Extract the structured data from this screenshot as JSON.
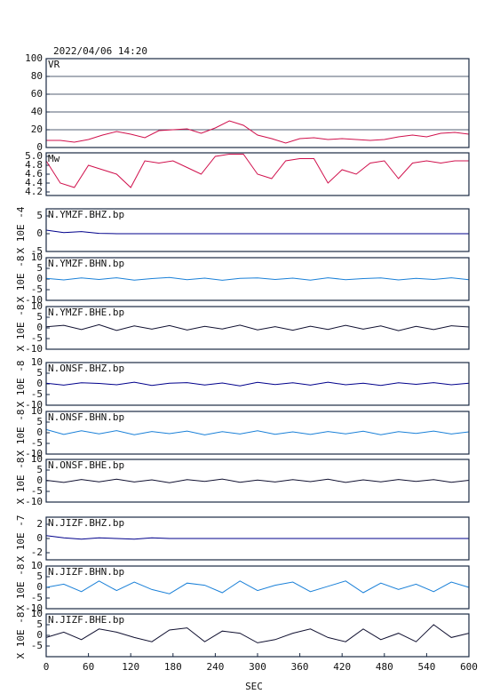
{
  "chart_data": [
    {
      "type": "line",
      "title": "2022/04/06 14:20",
      "label": "VR",
      "color": "#d0104c",
      "grid": true,
      "xlim": [
        0,
        600
      ],
      "ylim": [
        0,
        100
      ],
      "yticks": [
        0,
        20,
        40,
        60,
        80,
        100
      ],
      "x": [
        0,
        20,
        40,
        60,
        80,
        100,
        120,
        140,
        160,
        180,
        200,
        220,
        240,
        260,
        280,
        300,
        320,
        340,
        360,
        380,
        400,
        420,
        440,
        460,
        480,
        500,
        520,
        540,
        560,
        580,
        600
      ],
      "values": [
        8,
        8,
        6,
        9,
        14,
        18,
        15,
        11,
        19,
        20,
        21,
        16,
        22,
        30,
        25,
        14,
        10,
        5,
        10,
        11,
        9,
        10,
        9,
        8,
        9,
        12,
        14,
        12,
        16,
        17,
        15
      ]
    },
    {
      "type": "line",
      "label": "Mw",
      "color": "#d0104c",
      "grid": false,
      "xlim": [
        0,
        600
      ],
      "ylim": [
        4.12,
        5.08
      ],
      "yticks": [
        4.2,
        4.4,
        4.6,
        4.8,
        {
          "value": 5,
          "label": "5.0"
        }
      ],
      "x": [
        0,
        20,
        40,
        60,
        80,
        100,
        120,
        140,
        160,
        180,
        200,
        220,
        240,
        260,
        280,
        300,
        320,
        340,
        360,
        380,
        400,
        420,
        440,
        460,
        480,
        500,
        520,
        540,
        560,
        580,
        600
      ],
      "values": [
        4.9,
        4.4,
        4.3,
        4.8,
        4.7,
        4.6,
        4.3,
        4.9,
        4.85,
        4.9,
        4.75,
        4.6,
        5.0,
        5.05,
        5.05,
        4.6,
        4.5,
        4.9,
        4.95,
        4.95,
        4.4,
        4.7,
        4.6,
        4.85,
        4.9,
        4.5,
        4.85,
        4.9,
        4.85,
        4.9,
        4.9
      ]
    },
    {
      "type": "line",
      "label": "N.YMZF.BHZ.bp",
      "ylabel": "X 10E -4",
      "color": "#00008b",
      "xlim": [
        0,
        600
      ],
      "ylim": [
        -5,
        7
      ],
      "yticks": [
        -5,
        0,
        5
      ],
      "x": [
        0,
        25,
        50,
        75,
        100,
        125,
        150,
        175,
        200,
        225,
        250,
        275,
        300,
        325,
        350,
        375,
        400,
        425,
        450,
        475,
        500,
        525,
        550,
        575,
        600
      ],
      "values": [
        1,
        0.3,
        0.6,
        0.1,
        0,
        0,
        0,
        0,
        0,
        0,
        0,
        0,
        0,
        0,
        0,
        0,
        0,
        0,
        0,
        0,
        0,
        0,
        0,
        0,
        0
      ]
    },
    {
      "type": "line",
      "label": "N.YMZF.BHN.bp",
      "ylabel": "X 10E -8",
      "color": "#1a80d8",
      "xlim": [
        0,
        600
      ],
      "ylim": [
        -10,
        10
      ],
      "yticks": [
        -10,
        -5,
        0,
        5,
        10
      ],
      "x": [
        0,
        25,
        50,
        75,
        100,
        125,
        150,
        175,
        200,
        225,
        250,
        275,
        300,
        325,
        350,
        375,
        400,
        425,
        450,
        475,
        500,
        525,
        550,
        575,
        600
      ],
      "values": [
        0.3,
        -0.4,
        0.5,
        -0.2,
        0.6,
        -0.5,
        0.2,
        0.7,
        -0.3,
        0.4,
        -0.6,
        0.3,
        0.5,
        -0.2,
        0.4,
        -0.5,
        0.6,
        -0.3,
        0.2,
        0.5,
        -0.4,
        0.3,
        -0.2,
        0.6,
        -0.3
      ]
    },
    {
      "type": "line",
      "label": "N.YMZF.BHE.bp",
      "ylabel": "X 10E -8",
      "color": "#101030",
      "xlim": [
        0,
        600
      ],
      "ylim": [
        -10,
        10
      ],
      "yticks": [
        -10,
        -5,
        0,
        5,
        10
      ],
      "x": [
        0,
        25,
        50,
        75,
        100,
        125,
        150,
        175,
        200,
        225,
        250,
        275,
        300,
        325,
        350,
        375,
        400,
        425,
        450,
        475,
        500,
        525,
        550,
        575,
        600
      ],
      "values": [
        0.5,
        1.2,
        -0.8,
        1.5,
        -1.2,
        0.9,
        -0.6,
        1.1,
        -1.0,
        0.7,
        -0.5,
        1.3,
        -0.9,
        0.6,
        -1.1,
        0.8,
        -0.7,
        1.2,
        -0.6,
        0.9,
        -1.3,
        0.7,
        -0.8,
        1.0,
        0.4
      ]
    },
    {
      "type": "line",
      "label": "N.ONSF.BHZ.bp",
      "ylabel": "X 10E -8",
      "color": "#00008b",
      "xlim": [
        0,
        600
      ],
      "ylim": [
        -10,
        10
      ],
      "yticks": [
        -10,
        -5,
        0,
        5,
        10
      ],
      "x": [
        0,
        25,
        50,
        75,
        100,
        125,
        150,
        175,
        200,
        225,
        250,
        275,
        300,
        325,
        350,
        375,
        400,
        425,
        450,
        475,
        500,
        525,
        550,
        575,
        600
      ],
      "values": [
        0.3,
        -0.6,
        0.5,
        0.2,
        -0.4,
        0.8,
        -0.7,
        0.3,
        0.6,
        -0.5,
        0.4,
        -0.9,
        0.7,
        -0.3,
        0.5,
        -0.6,
        0.8,
        -0.4,
        0.3,
        -0.7,
        0.5,
        -0.2,
        0.6,
        -0.4,
        0.3
      ]
    },
    {
      "type": "line",
      "label": "N.ONSF.BHN.bp",
      "ylabel": "X 10E -8",
      "color": "#1a80d8",
      "xlim": [
        0,
        600
      ],
      "ylim": [
        -10,
        10
      ],
      "yticks": [
        -10,
        -5,
        0,
        5,
        10
      ],
      "x": [
        0,
        25,
        50,
        75,
        100,
        125,
        150,
        175,
        200,
        225,
        250,
        275,
        300,
        325,
        350,
        375,
        400,
        425,
        450,
        475,
        500,
        525,
        550,
        575,
        600
      ],
      "values": [
        1.5,
        -0.8,
        0.9,
        -0.5,
        1.0,
        -0.9,
        0.6,
        -0.4,
        0.8,
        -1.0,
        0.5,
        -0.6,
        0.9,
        -0.7,
        0.4,
        -0.8,
        0.6,
        -0.5,
        0.7,
        -0.9,
        0.5,
        -0.3,
        0.8,
        -0.6,
        0.4
      ]
    },
    {
      "type": "line",
      "label": "N.ONSF.BHE.bp",
      "ylabel": "X 10E -8",
      "color": "#101030",
      "xlim": [
        0,
        600
      ],
      "ylim": [
        -10,
        10
      ],
      "yticks": [
        -10,
        -5,
        0,
        5,
        10
      ],
      "x": [
        0,
        25,
        50,
        75,
        100,
        125,
        150,
        175,
        200,
        225,
        250,
        275,
        300,
        325,
        350,
        375,
        400,
        425,
        450,
        475,
        500,
        525,
        550,
        575,
        600
      ],
      "values": [
        0.2,
        -0.8,
        0.6,
        -0.5,
        0.7,
        -0.6,
        0.4,
        -0.9,
        0.5,
        -0.3,
        0.8,
        -0.7,
        0.3,
        -0.6,
        0.5,
        -0.4,
        0.7,
        -0.8,
        0.4,
        -0.5,
        0.6,
        -0.3,
        0.5,
        -0.7,
        0.2
      ]
    },
    {
      "type": "line",
      "label": "N.JIZF.BHZ.bp",
      "ylabel": "X 10E -7",
      "color": "#00008b",
      "xlim": [
        0,
        600
      ],
      "ylim": [
        -3,
        3
      ],
      "yticks": [
        -2,
        0,
        2
      ],
      "x": [
        0,
        25,
        50,
        75,
        100,
        125,
        150,
        175,
        200,
        225,
        250,
        275,
        300,
        325,
        350,
        375,
        400,
        425,
        450,
        475,
        500,
        525,
        550,
        575,
        600
      ],
      "values": [
        0.4,
        0.1,
        -0.1,
        0.1,
        0,
        -0.1,
        0.1,
        0,
        0,
        0,
        0,
        0,
        0,
        0,
        0,
        0,
        0,
        0,
        0,
        0,
        0,
        0,
        0,
        0,
        0
      ]
    },
    {
      "type": "line",
      "label": "N.JIZF.BHN.bp",
      "ylabel": "X 10E -8",
      "color": "#1a80d8",
      "xlim": [
        0,
        600
      ],
      "ylim": [
        -10,
        10
      ],
      "yticks": [
        -10,
        -5,
        0,
        5,
        10
      ],
      "x": [
        0,
        25,
        50,
        75,
        100,
        125,
        150,
        175,
        200,
        225,
        250,
        275,
        300,
        325,
        350,
        375,
        400,
        425,
        450,
        475,
        500,
        525,
        550,
        575,
        600
      ],
      "values": [
        0,
        1.5,
        -2,
        3,
        -1.5,
        2.5,
        -1,
        -3,
        2,
        1,
        -2.5,
        3,
        -1.5,
        1,
        2.5,
        -2,
        0.5,
        3,
        -2.5,
        2,
        -1,
        1.5,
        -2,
        2.5,
        0
      ]
    },
    {
      "type": "line",
      "label": "N.JIZF.BHE.bp",
      "ylabel": "X 10E -8",
      "color": "#101030",
      "xlim": [
        0,
        600
      ],
      "ylim": [
        -10,
        10
      ],
      "yticks": [
        -5,
        0,
        5,
        10
      ],
      "xticks": [
        0,
        60,
        120,
        180,
        240,
        300,
        360,
        420,
        480,
        540,
        600
      ],
      "xlabel": "SEC",
      "x": [
        0,
        25,
        50,
        75,
        100,
        125,
        150,
        175,
        200,
        225,
        250,
        275,
        300,
        325,
        350,
        375,
        400,
        425,
        450,
        475,
        500,
        525,
        550,
        575,
        600
      ],
      "values": [
        -1,
        1.5,
        -2,
        3,
        1.5,
        -1,
        -3,
        2.5,
        3.5,
        -3,
        2,
        1,
        -3.5,
        -2,
        1,
        3,
        -1,
        -3,
        3,
        -2,
        1,
        -3,
        5,
        -1,
        1
      ]
    }
  ]
}
